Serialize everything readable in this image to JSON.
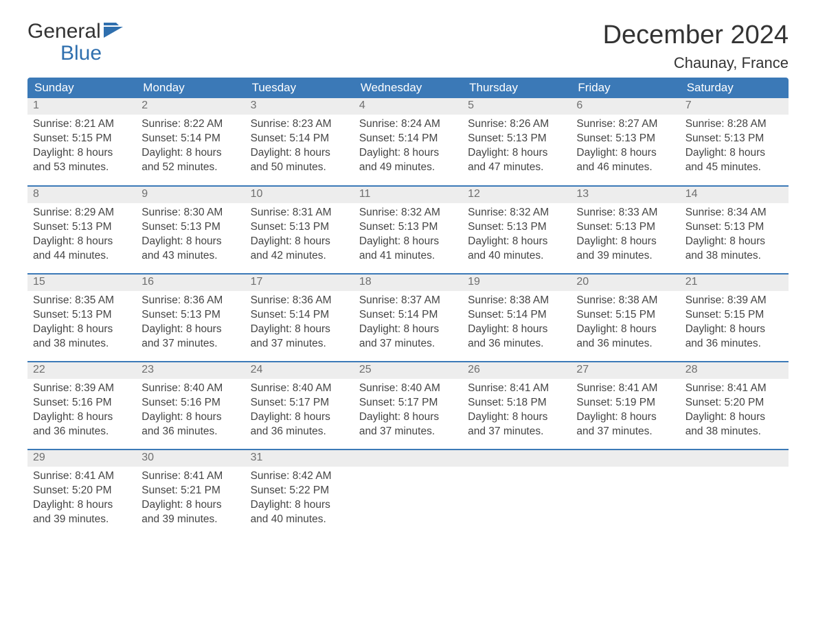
{
  "logo": {
    "text1": "General",
    "text2": "Blue",
    "accent_color": "#2f6fae"
  },
  "title": "December 2024",
  "location": "Chaunay, France",
  "colors": {
    "header_bg": "#3b79b7",
    "header_text": "#ffffff",
    "daynum_bg": "#ededed",
    "daynum_text": "#6f6f6f",
    "body_text": "#444444",
    "rule": "#3b79b7"
  },
  "day_names": [
    "Sunday",
    "Monday",
    "Tuesday",
    "Wednesday",
    "Thursday",
    "Friday",
    "Saturday"
  ],
  "weeks": [
    [
      {
        "n": "1",
        "sr": "Sunrise: 8:21 AM",
        "ss": "Sunset: 5:15 PM",
        "d1": "Daylight: 8 hours",
        "d2": "and 53 minutes."
      },
      {
        "n": "2",
        "sr": "Sunrise: 8:22 AM",
        "ss": "Sunset: 5:14 PM",
        "d1": "Daylight: 8 hours",
        "d2": "and 52 minutes."
      },
      {
        "n": "3",
        "sr": "Sunrise: 8:23 AM",
        "ss": "Sunset: 5:14 PM",
        "d1": "Daylight: 8 hours",
        "d2": "and 50 minutes."
      },
      {
        "n": "4",
        "sr": "Sunrise: 8:24 AM",
        "ss": "Sunset: 5:14 PM",
        "d1": "Daylight: 8 hours",
        "d2": "and 49 minutes."
      },
      {
        "n": "5",
        "sr": "Sunrise: 8:26 AM",
        "ss": "Sunset: 5:13 PM",
        "d1": "Daylight: 8 hours",
        "d2": "and 47 minutes."
      },
      {
        "n": "6",
        "sr": "Sunrise: 8:27 AM",
        "ss": "Sunset: 5:13 PM",
        "d1": "Daylight: 8 hours",
        "d2": "and 46 minutes."
      },
      {
        "n": "7",
        "sr": "Sunrise: 8:28 AM",
        "ss": "Sunset: 5:13 PM",
        "d1": "Daylight: 8 hours",
        "d2": "and 45 minutes."
      }
    ],
    [
      {
        "n": "8",
        "sr": "Sunrise: 8:29 AM",
        "ss": "Sunset: 5:13 PM",
        "d1": "Daylight: 8 hours",
        "d2": "and 44 minutes."
      },
      {
        "n": "9",
        "sr": "Sunrise: 8:30 AM",
        "ss": "Sunset: 5:13 PM",
        "d1": "Daylight: 8 hours",
        "d2": "and 43 minutes."
      },
      {
        "n": "10",
        "sr": "Sunrise: 8:31 AM",
        "ss": "Sunset: 5:13 PM",
        "d1": "Daylight: 8 hours",
        "d2": "and 42 minutes."
      },
      {
        "n": "11",
        "sr": "Sunrise: 8:32 AM",
        "ss": "Sunset: 5:13 PM",
        "d1": "Daylight: 8 hours",
        "d2": "and 41 minutes."
      },
      {
        "n": "12",
        "sr": "Sunrise: 8:32 AM",
        "ss": "Sunset: 5:13 PM",
        "d1": "Daylight: 8 hours",
        "d2": "and 40 minutes."
      },
      {
        "n": "13",
        "sr": "Sunrise: 8:33 AM",
        "ss": "Sunset: 5:13 PM",
        "d1": "Daylight: 8 hours",
        "d2": "and 39 minutes."
      },
      {
        "n": "14",
        "sr": "Sunrise: 8:34 AM",
        "ss": "Sunset: 5:13 PM",
        "d1": "Daylight: 8 hours",
        "d2": "and 38 minutes."
      }
    ],
    [
      {
        "n": "15",
        "sr": "Sunrise: 8:35 AM",
        "ss": "Sunset: 5:13 PM",
        "d1": "Daylight: 8 hours",
        "d2": "and 38 minutes."
      },
      {
        "n": "16",
        "sr": "Sunrise: 8:36 AM",
        "ss": "Sunset: 5:13 PM",
        "d1": "Daylight: 8 hours",
        "d2": "and 37 minutes."
      },
      {
        "n": "17",
        "sr": "Sunrise: 8:36 AM",
        "ss": "Sunset: 5:14 PM",
        "d1": "Daylight: 8 hours",
        "d2": "and 37 minutes."
      },
      {
        "n": "18",
        "sr": "Sunrise: 8:37 AM",
        "ss": "Sunset: 5:14 PM",
        "d1": "Daylight: 8 hours",
        "d2": "and 37 minutes."
      },
      {
        "n": "19",
        "sr": "Sunrise: 8:38 AM",
        "ss": "Sunset: 5:14 PM",
        "d1": "Daylight: 8 hours",
        "d2": "and 36 minutes."
      },
      {
        "n": "20",
        "sr": "Sunrise: 8:38 AM",
        "ss": "Sunset: 5:15 PM",
        "d1": "Daylight: 8 hours",
        "d2": "and 36 minutes."
      },
      {
        "n": "21",
        "sr": "Sunrise: 8:39 AM",
        "ss": "Sunset: 5:15 PM",
        "d1": "Daylight: 8 hours",
        "d2": "and 36 minutes."
      }
    ],
    [
      {
        "n": "22",
        "sr": "Sunrise: 8:39 AM",
        "ss": "Sunset: 5:16 PM",
        "d1": "Daylight: 8 hours",
        "d2": "and 36 minutes."
      },
      {
        "n": "23",
        "sr": "Sunrise: 8:40 AM",
        "ss": "Sunset: 5:16 PM",
        "d1": "Daylight: 8 hours",
        "d2": "and 36 minutes."
      },
      {
        "n": "24",
        "sr": "Sunrise: 8:40 AM",
        "ss": "Sunset: 5:17 PM",
        "d1": "Daylight: 8 hours",
        "d2": "and 36 minutes."
      },
      {
        "n": "25",
        "sr": "Sunrise: 8:40 AM",
        "ss": "Sunset: 5:17 PM",
        "d1": "Daylight: 8 hours",
        "d2": "and 37 minutes."
      },
      {
        "n": "26",
        "sr": "Sunrise: 8:41 AM",
        "ss": "Sunset: 5:18 PM",
        "d1": "Daylight: 8 hours",
        "d2": "and 37 minutes."
      },
      {
        "n": "27",
        "sr": "Sunrise: 8:41 AM",
        "ss": "Sunset: 5:19 PM",
        "d1": "Daylight: 8 hours",
        "d2": "and 37 minutes."
      },
      {
        "n": "28",
        "sr": "Sunrise: 8:41 AM",
        "ss": "Sunset: 5:20 PM",
        "d1": "Daylight: 8 hours",
        "d2": "and 38 minutes."
      }
    ],
    [
      {
        "n": "29",
        "sr": "Sunrise: 8:41 AM",
        "ss": "Sunset: 5:20 PM",
        "d1": "Daylight: 8 hours",
        "d2": "and 39 minutes."
      },
      {
        "n": "30",
        "sr": "Sunrise: 8:41 AM",
        "ss": "Sunset: 5:21 PM",
        "d1": "Daylight: 8 hours",
        "d2": "and 39 minutes."
      },
      {
        "n": "31",
        "sr": "Sunrise: 8:42 AM",
        "ss": "Sunset: 5:22 PM",
        "d1": "Daylight: 8 hours",
        "d2": "and 40 minutes."
      },
      null,
      null,
      null,
      null
    ]
  ]
}
